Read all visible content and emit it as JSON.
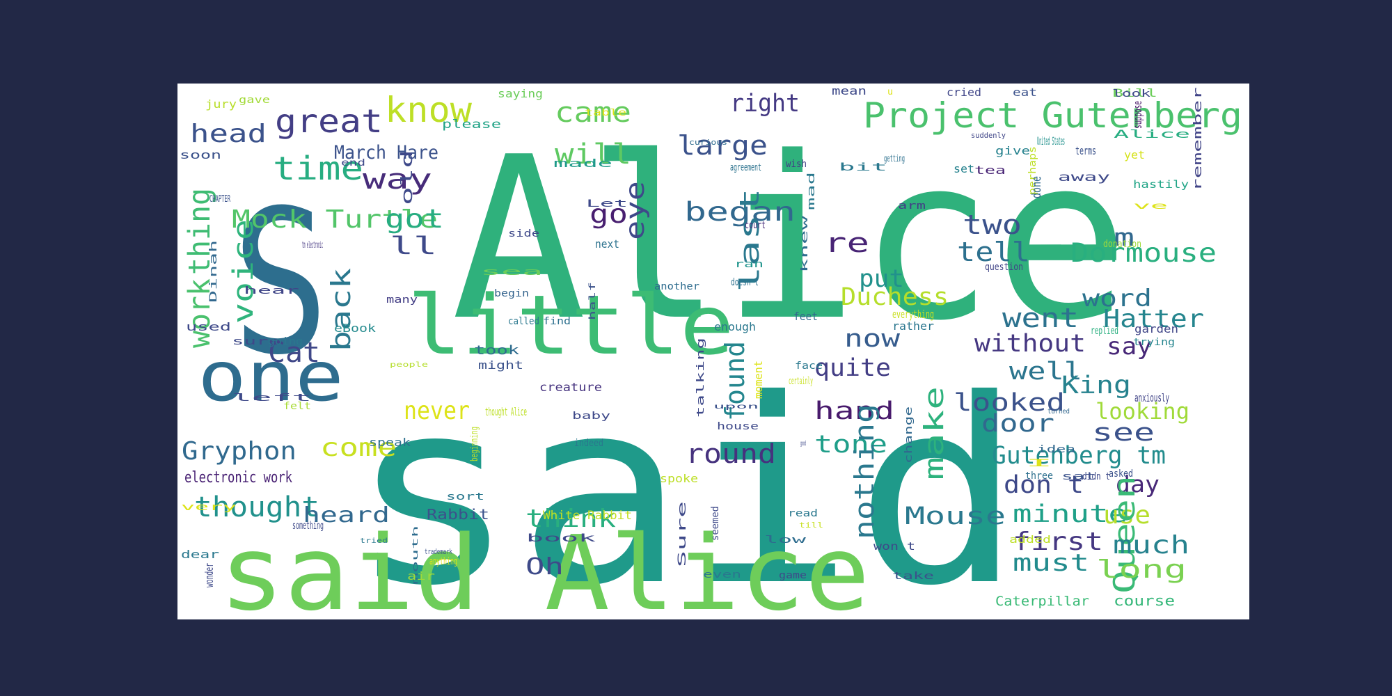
{
  "words": [
    {
      "text": "Alice",
      "color": "#2fb17c"
    },
    {
      "text": "said",
      "color": "#1f9a8a"
    },
    {
      "text": "S",
      "color": "#2d6e8e"
    },
    {
      "text": "said Alice",
      "color": "#6ecd5a"
    },
    {
      "text": "little",
      "color": "#3dbc74"
    },
    {
      "text": "one",
      "color": "#2e6c8e"
    },
    {
      "text": "Project Gutenberg",
      "color": "#4ac16d"
    },
    {
      "text": "know",
      "color": "#bddf26"
    },
    {
      "text": "great",
      "color": "#433e85"
    },
    {
      "text": "time",
      "color": "#27ad81"
    },
    {
      "text": "head",
      "color": "#3b528b"
    },
    {
      "text": "March Hare",
      "color": "#3b528b"
    },
    {
      "text": "way",
      "color": "#472c7a"
    },
    {
      "text": "came",
      "color": "#65cb5e"
    },
    {
      "text": "will",
      "color": "#5ec962"
    },
    {
      "text": "right",
      "color": "#443983"
    },
    {
      "text": "large",
      "color": "#3b528b"
    },
    {
      "text": "Mock Turtle",
      "color": "#52c569"
    },
    {
      "text": "thing",
      "color": "#3fbc73"
    },
    {
      "text": "work",
      "color": "#4ac16d"
    },
    {
      "text": "voice",
      "color": "#2fb47c"
    },
    {
      "text": "got",
      "color": "#27ad81"
    },
    {
      "text": "go",
      "color": "#481f70"
    },
    {
      "text": "eye",
      "color": "#3e4989"
    },
    {
      "text": "began",
      "color": "#31688e"
    },
    {
      "text": "last",
      "color": "#2a788e"
    },
    {
      "text": "re",
      "color": "#482475"
    },
    {
      "text": "two",
      "color": "#3b528b"
    },
    {
      "text": "tell",
      "color": "#2d708e"
    },
    {
      "text": "Dormouse",
      "color": "#29af7f"
    },
    {
      "text": "m",
      "color": "#31688e"
    },
    {
      "text": "ll",
      "color": "#3e4989"
    },
    {
      "text": "put",
      "color": "#21918c"
    },
    {
      "text": "word",
      "color": "#2c728e"
    },
    {
      "text": "went",
      "color": "#2c728e"
    },
    {
      "text": "Hatter",
      "color": "#25858e"
    },
    {
      "text": "back",
      "color": "#2a788e"
    },
    {
      "text": "Duchess",
      "color": "#b5de2b"
    },
    {
      "text": "say",
      "color": "#482878"
    },
    {
      "text": "without",
      "color": "#453781"
    },
    {
      "text": "now",
      "color": "#365c8d"
    },
    {
      "text": "Cat",
      "color": "#3f4788"
    },
    {
      "text": "quite",
      "color": "#433e85"
    },
    {
      "text": "well",
      "color": "#2b758e"
    },
    {
      "text": "King",
      "color": "#26828e"
    },
    {
      "text": "found",
      "color": "#24868e"
    },
    {
      "text": "looked",
      "color": "#3b528b"
    },
    {
      "text": "looking",
      "color": "#a0da39"
    },
    {
      "text": "never",
      "color": "#dde318"
    },
    {
      "text": "hand",
      "color": "#481a6c"
    },
    {
      "text": "make",
      "color": "#2db27d"
    },
    {
      "text": "door",
      "color": "#31688e"
    },
    {
      "text": "see",
      "color": "#3b528b"
    },
    {
      "text": "tone",
      "color": "#1f9e89"
    },
    {
      "text": "Gryphon",
      "color": "#30698e"
    },
    {
      "text": "come",
      "color": "#c8e020"
    },
    {
      "text": "round",
      "color": "#46327e"
    },
    {
      "text": "Gutenberg tm",
      "color": "#228c8d"
    },
    {
      "text": "electronic work",
      "color": "#482173"
    },
    {
      "text": "nothing",
      "color": "#2a788e"
    },
    {
      "text": "don t",
      "color": "#3e4989"
    },
    {
      "text": "day",
      "color": "#482878"
    },
    {
      "text": "thought",
      "color": "#21918c"
    },
    {
      "text": "heard",
      "color": "#31688e"
    },
    {
      "text": "think",
      "color": "#29af7f"
    },
    {
      "text": "Mouse",
      "color": "#2a788e"
    },
    {
      "text": "minute",
      "color": "#1fa088"
    },
    {
      "text": "use",
      "color": "#b5de2b"
    },
    {
      "text": "Queen",
      "color": "#3aba76"
    },
    {
      "text": "first",
      "color": "#453781"
    },
    {
      "text": "much",
      "color": "#26828e"
    },
    {
      "text": "Oh",
      "color": "#3e4a89"
    },
    {
      "text": "must",
      "color": "#228b8d"
    },
    {
      "text": "long",
      "color": "#7ad151"
    },
    {
      "text": "Rabbit",
      "color": "#3b528b"
    },
    {
      "text": "White Rabbit",
      "color": "#c2df23"
    },
    {
      "text": "Caterpillar",
      "color": "#3aba76"
    },
    {
      "text": "course",
      "color": "#35b779"
    },
    {
      "text": "jury",
      "color": "#b8de29"
    },
    {
      "text": "gave",
      "color": "#a2da37"
    },
    {
      "text": "saying",
      "color": "#6ccd5a"
    },
    {
      "text": "table",
      "color": "#dce319"
    },
    {
      "text": "mean",
      "color": "#3e4989"
    },
    {
      "text": "u",
      "color": "#dde318"
    },
    {
      "text": "cried",
      "color": "#404688"
    },
    {
      "text": "eat",
      "color": "#3b528b"
    },
    {
      "text": "Bill",
      "color": "#6ccd5a"
    },
    {
      "text": "look",
      "color": "#3e4989"
    },
    {
      "text": "arm",
      "color": "#424086"
    },
    {
      "text": "soon",
      "color": "#3b528b"
    },
    {
      "text": "please",
      "color": "#20a386"
    },
    {
      "text": "curious",
      "color": "#2f6b8e"
    },
    {
      "text": "suddenly",
      "color": "#404688"
    },
    {
      "text": "suppose",
      "color": "#481668"
    },
    {
      "text": "Alice",
      "color": "#27ad81"
    },
    {
      "text": "remember",
      "color": "#414487"
    },
    {
      "text": "United States",
      "color": "#21918c"
    },
    {
      "text": "give",
      "color": "#26828e"
    },
    {
      "text": "terms",
      "color": "#3b528b"
    },
    {
      "text": "yet",
      "color": "#d5e21a"
    },
    {
      "text": "set",
      "color": "#26828e"
    },
    {
      "text": "end",
      "color": "#3e4989"
    },
    {
      "text": "old",
      "color": "#3e4989"
    },
    {
      "text": "made",
      "color": "#1f9a8a"
    },
    {
      "text": "agreement",
      "color": "#2c728e"
    },
    {
      "text": "wish",
      "color": "#423f85"
    },
    {
      "text": "bit",
      "color": "#2a788e"
    },
    {
      "text": "getting",
      "color": "#2d708e"
    },
    {
      "text": "tea",
      "color": "#482475"
    },
    {
      "text": "away",
      "color": "#3e4989"
    },
    {
      "text": "perhaps",
      "color": "#bddf26"
    },
    {
      "text": "hastily",
      "color": "#20a486"
    },
    {
      "text": "CHAPTER",
      "color": "#3b528b"
    },
    {
      "text": "Let",
      "color": "#3e4989"
    },
    {
      "text": "court",
      "color": "#472c7a"
    },
    {
      "text": "mad",
      "color": "#2a788e"
    },
    {
      "text": "done",
      "color": "#31688e"
    },
    {
      "text": "ve",
      "color": "#dde318"
    },
    {
      "text": "side",
      "color": "#3e4989"
    },
    {
      "text": "next",
      "color": "#2c728e"
    },
    {
      "text": "ran",
      "color": "#1f948c"
    },
    {
      "text": "knew",
      "color": "#2e6c8e"
    },
    {
      "text": "donation",
      "color": "#9fda3a"
    },
    {
      "text": "Dinah",
      "color": "#31688e"
    },
    {
      "text": "tm electronic",
      "color": "#453781"
    },
    {
      "text": "sea",
      "color": "#6ccd5a"
    },
    {
      "text": "doesn t",
      "color": "#2d708e"
    },
    {
      "text": "question",
      "color": "#414487"
    },
    {
      "text": "hear",
      "color": "#404688"
    },
    {
      "text": "begin",
      "color": "#33638d"
    },
    {
      "text": "another",
      "color": "#2e6c8e"
    },
    {
      "text": "many",
      "color": "#433e85"
    },
    {
      "text": "called",
      "color": "#2a788e"
    },
    {
      "text": "find",
      "color": "#2d708e"
    },
    {
      "text": "half",
      "color": "#3b528b"
    },
    {
      "text": "feet",
      "color": "#31688e"
    },
    {
      "text": "everything",
      "color": "#c8e020"
    },
    {
      "text": "used",
      "color": "#3e4989"
    },
    {
      "text": "eBook",
      "color": "#238a8d"
    },
    {
      "text": "enough",
      "color": "#2a788e"
    },
    {
      "text": "rather",
      "color": "#2a768e"
    },
    {
      "text": "replied",
      "color": "#29af7f"
    },
    {
      "text": "garden",
      "color": "#404688"
    },
    {
      "text": "sure",
      "color": "#3e4989"
    },
    {
      "text": "going",
      "color": "#2a788e"
    },
    {
      "text": "trying",
      "color": "#25858e"
    },
    {
      "text": "took",
      "color": "#2e6c8e"
    },
    {
      "text": "people",
      "color": "#b5de2b"
    },
    {
      "text": "might",
      "color": "#3b528b"
    },
    {
      "text": "creature",
      "color": "#46337f"
    },
    {
      "text": "talking",
      "color": "#3e4989"
    },
    {
      "text": "moment",
      "color": "#dde318"
    },
    {
      "text": "certainly",
      "color": "#c8e020"
    },
    {
      "text": "face",
      "color": "#2a788e"
    },
    {
      "text": "left",
      "color": "#3e4989"
    },
    {
      "text": "felt",
      "color": "#a8db34"
    },
    {
      "text": "thought Alice",
      "color": "#bddf26"
    },
    {
      "text": "upon",
      "color": "#3b528b"
    },
    {
      "text": "turned",
      "color": "#31688e"
    },
    {
      "text": "anxiously",
      "color": "#414487"
    },
    {
      "text": "baby",
      "color": "#3e4989"
    },
    {
      "text": "house",
      "color": "#3e4989"
    },
    {
      "text": "change",
      "color": "#31688e"
    },
    {
      "text": "speak",
      "color": "#2d708e"
    },
    {
      "text": "beginning",
      "color": "#bddf26"
    },
    {
      "text": "indeed",
      "color": "#2a788e"
    },
    {
      "text": "good",
      "color": "#3e4989"
    },
    {
      "text": "idea",
      "color": "#31688e"
    },
    {
      "text": "I",
      "color": "#dde318"
    },
    {
      "text": "spoke",
      "color": "#bddf26"
    },
    {
      "text": "sort",
      "color": "#2a788e"
    },
    {
      "text": "asked",
      "color": "#3b528b"
    },
    {
      "text": "three",
      "color": "#2d708e"
    },
    {
      "text": "sat",
      "color": "#3b528b"
    },
    {
      "text": "didn t",
      "color": "#3e4989"
    },
    {
      "text": "very",
      "color": "#dde318"
    },
    {
      "text": "something",
      "color": "#3e4989"
    },
    {
      "text": "read",
      "color": "#2a788e"
    },
    {
      "text": "till",
      "color": "#c8e020"
    },
    {
      "text": "Sure",
      "color": "#3e4989"
    },
    {
      "text": "seemed",
      "color": "#3e4989"
    },
    {
      "text": "dear",
      "color": "#2a788e"
    },
    {
      "text": "tried",
      "color": "#2a788e"
    },
    {
      "text": "mouth",
      "color": "#2e6c8e"
    },
    {
      "text": "trademark",
      "color": "#3b528b"
    },
    {
      "text": "book",
      "color": "#3e4989"
    },
    {
      "text": "anything",
      "color": "#dde318"
    },
    {
      "text": "low",
      "color": "#2e6c8e"
    },
    {
      "text": "won t",
      "color": "#3e4989"
    },
    {
      "text": "added",
      "color": "#bddf26"
    },
    {
      "text": "wonder",
      "color": "#3e4989"
    },
    {
      "text": "air",
      "color": "#a0da39"
    },
    {
      "text": "even",
      "color": "#2a788e"
    },
    {
      "text": "game",
      "color": "#3e4989"
    },
    {
      "text": "take",
      "color": "#3b528b"
    },
    {
      "text": "leave",
      "color": "#2a788e"
    }
  ]
}
